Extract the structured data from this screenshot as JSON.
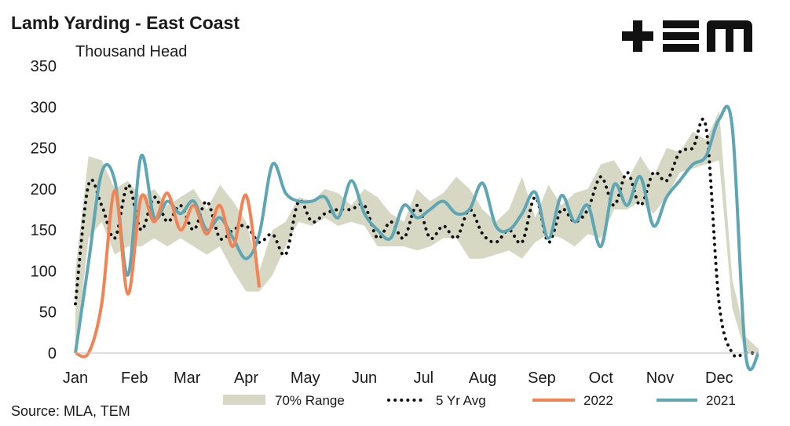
{
  "title": "Lamb Yarding - East Coast",
  "unit_label": "Thousand Head",
  "source": "Source: MLA, TEM",
  "logo": {
    "text": "TEM"
  },
  "colors": {
    "range": "#d6d8c4",
    "avg": "#111111",
    "y2022": "#f28354",
    "y2021": "#5ea6b3"
  },
  "chart_data": {
    "type": "line",
    "ylim": [
      0,
      350
    ],
    "yticks": [
      0,
      50,
      100,
      150,
      200,
      250,
      300,
      350
    ],
    "xlim": [
      1,
      53
    ],
    "xticks": [
      {
        "label": "Jan",
        "week": 1
      },
      {
        "label": "Feb",
        "week": 5.5
      },
      {
        "label": "Mar",
        "week": 9.5
      },
      {
        "label": "Apr",
        "week": 14
      },
      {
        "label": "May",
        "week": 18.5
      },
      {
        "label": "Jun",
        "week": 23
      },
      {
        "label": "Jul",
        "week": 27.5
      },
      {
        "label": "Aug",
        "week": 32
      },
      {
        "label": "Sep",
        "week": 36.5
      },
      {
        "label": "Oct",
        "week": 41
      },
      {
        "label": "Nov",
        "week": 45.5
      },
      {
        "label": "Dec",
        "week": 50
      }
    ],
    "legend": {
      "range": "70% Range",
      "avg": "5 Yr Avg",
      "y2022": "2022",
      "y2021": "2021"
    },
    "range_upper": [
      100,
      240,
      235,
      200,
      210,
      190,
      200,
      180,
      190,
      200,
      175,
      205,
      185,
      160,
      100,
      150,
      160,
      190,
      185,
      200,
      195,
      180,
      200,
      190,
      170,
      160,
      200,
      185,
      195,
      215,
      200,
      175,
      160,
      175,
      215,
      165,
      205,
      180,
      195,
      200,
      230,
      235,
      210,
      240,
      215,
      250,
      245,
      270,
      260,
      295,
      90,
      20,
      5
    ],
    "range_lower": [
      0,
      140,
      160,
      120,
      130,
      130,
      140,
      130,
      140,
      130,
      120,
      130,
      100,
      75,
      75,
      95,
      130,
      160,
      155,
      165,
      155,
      160,
      155,
      130,
      130,
      130,
      125,
      130,
      140,
      140,
      115,
      115,
      120,
      125,
      115,
      135,
      145,
      140,
      130,
      145,
      140,
      175,
      175,
      185,
      170,
      190,
      220,
      225,
      230,
      235,
      55,
      0,
      0
    ],
    "avg_5yr": [
      60,
      205,
      180,
      140,
      205,
      150,
      190,
      160,
      180,
      150,
      185,
      140,
      150,
      155,
      135,
      145,
      120,
      185,
      160,
      170,
      175,
      175,
      180,
      140,
      160,
      140,
      180,
      140,
      155,
      140,
      175,
      145,
      135,
      150,
      135,
      190,
      135,
      175,
      160,
      175,
      215,
      180,
      220,
      180,
      220,
      210,
      245,
      250,
      275,
      60,
      0,
      0,
      0
    ],
    "y2022": [
      0,
      0,
      60,
      198,
      72,
      190,
      160,
      195,
      150,
      180,
      145,
      180,
      130,
      192,
      80,
      null,
      null,
      null,
      null,
      null,
      null,
      null,
      null,
      null,
      null,
      null,
      null,
      null,
      null,
      null,
      null,
      null,
      null,
      null,
      null,
      null,
      null,
      null,
      null,
      null,
      null,
      null,
      null,
      null,
      null,
      null,
      null,
      null,
      null,
      null,
      null,
      null,
      null
    ],
    "y2021": [
      0,
      110,
      220,
      210,
      95,
      240,
      165,
      185,
      170,
      185,
      150,
      165,
      140,
      115,
      145,
      230,
      195,
      185,
      185,
      190,
      165,
      210,
      170,
      150,
      140,
      180,
      165,
      175,
      185,
      170,
      175,
      207,
      155,
      150,
      170,
      196,
      140,
      192,
      160,
      180,
      130,
      205,
      180,
      215,
      155,
      190,
      210,
      230,
      240,
      285,
      275,
      0,
      0
    ]
  }
}
